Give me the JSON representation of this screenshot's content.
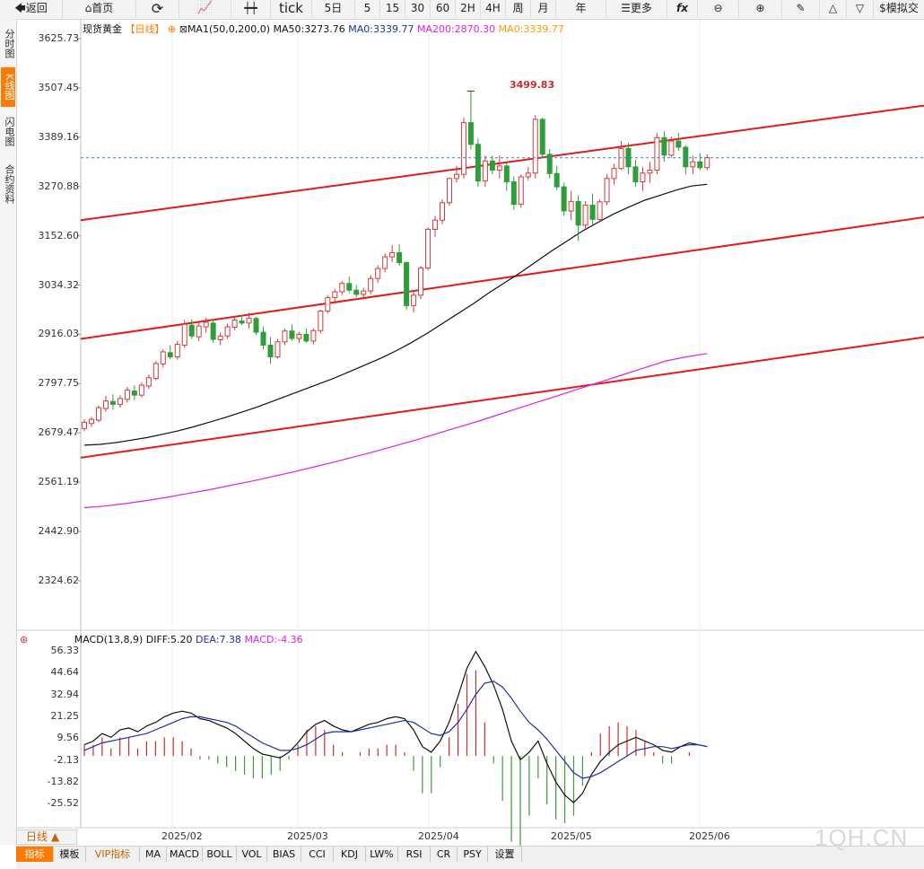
{
  "toolbar": {
    "back": "返回",
    "home": "首页",
    "tick": "tick",
    "periods": [
      "5日",
      "5",
      "15",
      "30",
      "60",
      "2H",
      "4H",
      "周",
      "月",
      "年"
    ],
    "more": "更多",
    "simulate": "模拟交"
  },
  "side_tabs": [
    "分时图",
    "K线图",
    "闪电图",
    "合约资料"
  ],
  "main_legend": {
    "instrument": "现货黄金",
    "period": "【日线】",
    "ma_name": "MA1(50,0,200,0)",
    "ma50": "MA50:3273.76",
    "ma0": "MA0:3339.77",
    "ma200": "MA200:2870.30",
    "ma0b": "MA0:3339.77"
  },
  "macd_legend": {
    "name": "MACD(13,8,9)",
    "diff": "DIFF:5.20",
    "dea": "DEA:7.38",
    "macd": "MACD:-4.36"
  },
  "peak_label": "3499.83",
  "period_button": "日线 ▲",
  "bottom_tabs": [
    "指标",
    "模板",
    "VIP指标",
    "MA",
    "MACD",
    "BOLL",
    "VOL",
    "BIAS",
    "CCI",
    "KDJ",
    "LW%",
    "RSI",
    "CR",
    "PSY",
    "设置"
  ],
  "watermark": "1QH.CN",
  "colors": {
    "up": "#d43a3a",
    "down": "#2e9e3a",
    "ma50": "#111111",
    "ma200": "#dd22dd",
    "channel": "#e41a1a",
    "dea": "#1f2fa8",
    "macd_pos": "#cf2f2f",
    "macd_neg": "#3d9a3d",
    "accent": "#ff7a00"
  },
  "chart_data": [
    {
      "type": "candlestick",
      "title": "现货黄金 日线",
      "y_ticks": [
        "3625.73",
        "3507.45",
        "3389.16",
        "3270.88",
        "3152.60",
        "3034.32",
        "2916.03",
        "2797.75",
        "2679.47",
        "2561.19",
        "2442.90",
        "2324.62"
      ],
      "ylim": [
        2280,
        3640
      ],
      "x_ticks": [
        "2025/02",
        "2025/03",
        "2025/04",
        "2025/05",
        "2025/06"
      ],
      "last_price": 3339.77,
      "peak": 3499.83,
      "ma50_end": 3273.76,
      "ma200_end": 2870.3,
      "ohlc": [
        [
          2690,
          2712,
          2683,
          2705
        ],
        [
          2702,
          2718,
          2694,
          2712
        ],
        [
          2710,
          2745,
          2705,
          2740
        ],
        [
          2738,
          2768,
          2730,
          2756
        ],
        [
          2755,
          2772,
          2735,
          2748
        ],
        [
          2748,
          2770,
          2740,
          2762
        ],
        [
          2760,
          2790,
          2752,
          2782
        ],
        [
          2780,
          2794,
          2758,
          2770
        ],
        [
          2770,
          2800,
          2765,
          2794
        ],
        [
          2792,
          2820,
          2785,
          2812
        ],
        [
          2810,
          2852,
          2806,
          2846
        ],
        [
          2845,
          2880,
          2836,
          2874
        ],
        [
          2872,
          2890,
          2856,
          2862
        ],
        [
          2862,
          2900,
          2855,
          2892
        ],
        [
          2890,
          2950,
          2884,
          2940
        ],
        [
          2938,
          2952,
          2905,
          2912
        ],
        [
          2910,
          2945,
          2900,
          2936
        ],
        [
          2934,
          2956,
          2920,
          2945
        ],
        [
          2943,
          2952,
          2896,
          2904
        ],
        [
          2903,
          2920,
          2890,
          2912
        ],
        [
          2912,
          2942,
          2905,
          2934
        ],
        [
          2933,
          2958,
          2926,
          2950
        ],
        [
          2948,
          2962,
          2938,
          2943
        ],
        [
          2943,
          2968,
          2930,
          2955
        ],
        [
          2954,
          2958,
          2915,
          2921
        ],
        [
          2921,
          2935,
          2880,
          2890
        ],
        [
          2890,
          2910,
          2845,
          2862
        ],
        [
          2862,
          2905,
          2858,
          2898
        ],
        [
          2898,
          2930,
          2890,
          2924
        ],
        [
          2924,
          2940,
          2900,
          2906
        ],
        [
          2906,
          2922,
          2895,
          2916
        ],
        [
          2916,
          2930,
          2895,
          2900
        ],
        [
          2900,
          2930,
          2892,
          2925
        ],
        [
          2925,
          2975,
          2918,
          2972
        ],
        [
          2972,
          3010,
          2966,
          3004
        ],
        [
          3004,
          3025,
          2990,
          3018
        ],
        [
          3018,
          3044,
          3010,
          3038
        ],
        [
          3038,
          3055,
          3015,
          3022
        ],
        [
          3022,
          3035,
          3005,
          3012
        ],
        [
          3012,
          3028,
          3000,
          3020
        ],
        [
          3020,
          3058,
          3012,
          3050
        ],
        [
          3050,
          3082,
          3040,
          3074
        ],
        [
          3074,
          3110,
          3065,
          3102
        ],
        [
          3102,
          3130,
          3090,
          3112
        ],
        [
          3112,
          3132,
          3080,
          3088
        ],
        [
          3088,
          3092,
          2975,
          2985
        ],
        [
          2985,
          3020,
          2968,
          3010
        ],
        [
          3010,
          3080,
          3000,
          3075
        ],
        [
          3075,
          3172,
          3070,
          3168
        ],
        [
          3168,
          3200,
          3150,
          3190
        ],
        [
          3190,
          3240,
          3180,
          3232
        ],
        [
          3232,
          3292,
          3225,
          3290
        ],
        [
          3290,
          3320,
          3280,
          3300
        ],
        [
          3300,
          3436,
          3290,
          3424
        ],
        [
          3424,
          3500,
          3360,
          3372
        ],
        [
          3372,
          3386,
          3270,
          3284
        ],
        [
          3284,
          3345,
          3270,
          3332
        ],
        [
          3332,
          3345,
          3300,
          3310
        ],
        [
          3310,
          3345,
          3290,
          3320
        ],
        [
          3320,
          3330,
          3260,
          3282
        ],
        [
          3282,
          3295,
          3215,
          3228
        ],
        [
          3228,
          3300,
          3220,
          3294
        ],
        [
          3294,
          3318,
          3285,
          3303
        ],
        [
          3303,
          3442,
          3290,
          3432
        ],
        [
          3432,
          3436,
          3340,
          3348
        ],
        [
          3348,
          3360,
          3290,
          3302
        ],
        [
          3302,
          3320,
          3262,
          3270
        ],
        [
          3270,
          3280,
          3200,
          3212
        ],
        [
          3212,
          3260,
          3190,
          3235
        ],
        [
          3235,
          3250,
          3140,
          3178
        ],
        [
          3178,
          3236,
          3170,
          3226
        ],
        [
          3226,
          3254,
          3180,
          3192
        ],
        [
          3192,
          3240,
          3185,
          3234
        ],
        [
          3234,
          3300,
          3226,
          3290
        ],
        [
          3290,
          3325,
          3275,
          3314
        ],
        [
          3314,
          3380,
          3310,
          3362
        ],
        [
          3362,
          3376,
          3300,
          3318
        ],
        [
          3318,
          3335,
          3270,
          3282
        ],
        [
          3282,
          3318,
          3260,
          3303
        ],
        [
          3303,
          3330,
          3280,
          3310
        ],
        [
          3310,
          3400,
          3300,
          3388
        ],
        [
          3388,
          3404,
          3330,
          3346
        ],
        [
          3346,
          3390,
          3340,
          3380
        ],
        [
          3380,
          3400,
          3356,
          3365
        ],
        [
          3365,
          3370,
          3300,
          3318
        ],
        [
          3318,
          3345,
          3300,
          3330
        ],
        [
          3330,
          3350,
          3310,
          3316
        ],
        [
          3316,
          3348,
          3310,
          3340
        ]
      ]
    },
    {
      "type": "line",
      "title": "MACD(13,8,9)",
      "y_ticks": [
        "56.33",
        "44.64",
        "32.94",
        "21.25",
        "9.56",
        "-2.13",
        "-13.82",
        "-25.52"
      ],
      "ylim": [
        -36,
        60
      ],
      "diff": 5.2,
      "dea": 7.38,
      "macd": -4.36
    }
  ]
}
